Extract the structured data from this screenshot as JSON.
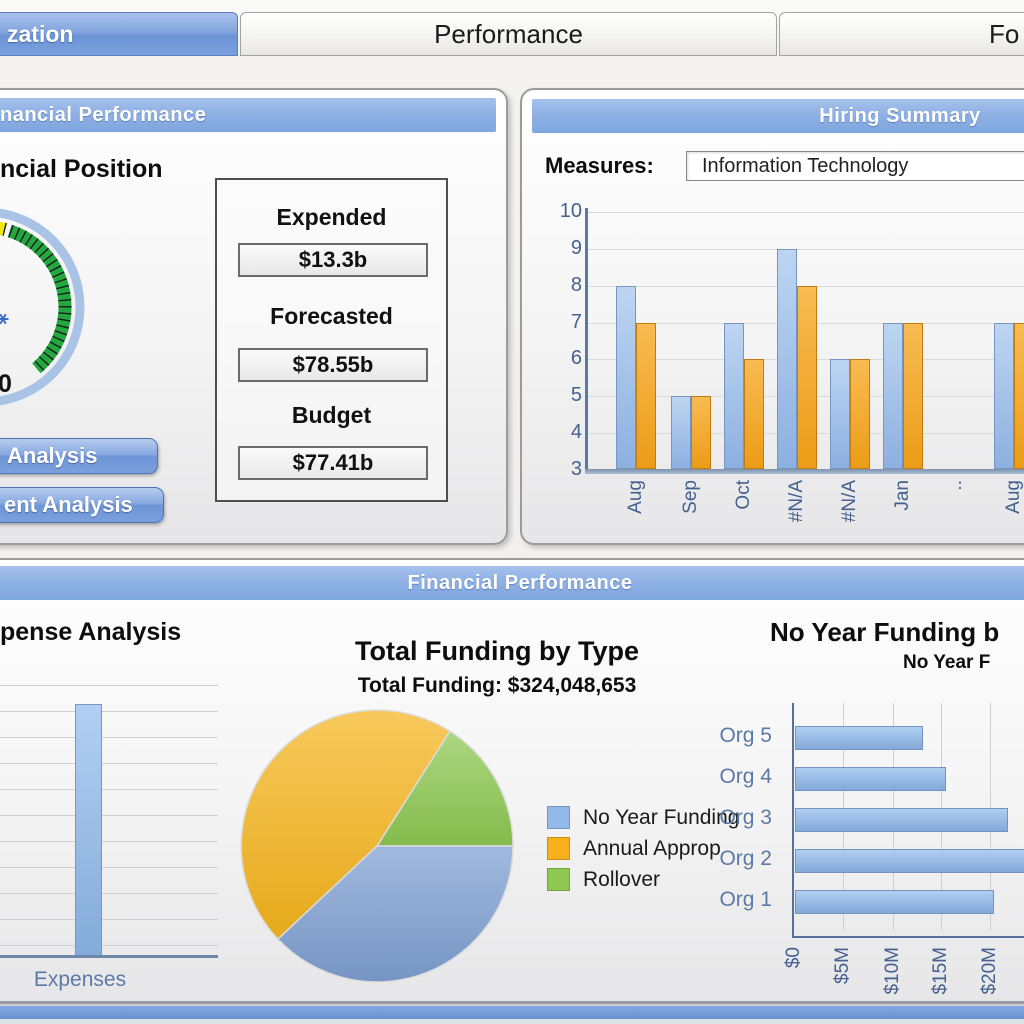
{
  "tabs": {
    "items": [
      {
        "label": "zation",
        "selected": true
      },
      {
        "label": "Performance",
        "selected": false
      },
      {
        "label": "Fo",
        "selected": false
      }
    ]
  },
  "left_panel": {
    "header": "nancial Performance",
    "section_title": "ncial Position",
    "gauge": {
      "label": "0",
      "ring_color": "#a9c3e6",
      "needle_color": "#3d6cc3",
      "segments": [
        {
          "from": 152,
          "to": 76,
          "color": "#f3e70c"
        },
        {
          "from": 72,
          "to": -50,
          "color": "#22a83e"
        }
      ]
    },
    "metrics": [
      {
        "label": "Expended",
        "value": "$13.3b"
      },
      {
        "label": "Forecasted",
        "value": "$78.55b"
      },
      {
        "label": "Budget",
        "value": "$77.41b"
      }
    ],
    "buttons": [
      {
        "label": "Analysis"
      },
      {
        "label": "ent Analysis"
      }
    ]
  },
  "right_panel": {
    "header": "Hiring Summary",
    "measures_label": "Measures:",
    "measures_value": "Information Technology"
  },
  "bottom_panel": {
    "header": "Financial Performance",
    "expense": {
      "title": "pense Analysis",
      "xlabel": "Expenses"
    },
    "pie": {
      "title": "Total Funding by Type",
      "subtitle": "Total Funding: $324,048,653"
    },
    "org": {
      "title": "No Year Funding b",
      "subtitle": "No Year F"
    }
  },
  "chart_data": [
    {
      "id": "hiring_summary",
      "type": "bar",
      "categories": [
        "Aug",
        "Sep",
        "Oct",
        "#N/A",
        "#N/A",
        "Jan",
        "..",
        "Aug"
      ],
      "series": [
        {
          "name": "blue-series",
          "color": "#92b4e3",
          "values": [
            8,
            5,
            7,
            9,
            6,
            7,
            null,
            7
          ]
        },
        {
          "name": "orange-series",
          "color": "#efa02a",
          "values": [
            7,
            5,
            6,
            8,
            6,
            7,
            null,
            7
          ]
        }
      ],
      "ylim": [
        3,
        10
      ],
      "yticks": [
        3,
        4,
        5,
        6,
        7,
        8,
        9,
        10
      ],
      "grid": true
    },
    {
      "id": "expense_analysis",
      "type": "bar",
      "title": "pense Analysis",
      "categories": [
        "Expenses"
      ],
      "values": [
        0.93
      ],
      "ylim": [
        0,
        1
      ],
      "grid": true
    },
    {
      "id": "total_funding_by_type",
      "type": "pie",
      "title": "Total Funding by Type",
      "subtitle": "Total Funding: $324,048,653",
      "start_angle": 0,
      "direction": "ccw",
      "draw_order": [
        2,
        1,
        0
      ],
      "slices": [
        {
          "label": "No Year Funding",
          "pct": 38,
          "color": "#7d9ed1",
          "legend_color": "#93b9e9"
        },
        {
          "label": "Annual Approp",
          "pct": 46,
          "color": "#f5b41c",
          "legend_color": "#f5b01b"
        },
        {
          "label": "Rollover",
          "pct": 16,
          "color": "#8cc751",
          "legend_color": "#8dc853"
        }
      ],
      "legend_position": "right"
    },
    {
      "id": "no_year_funding_by_org",
      "type": "bar-horizontal",
      "title": "No Year Funding b",
      "subtitle": "No Year F",
      "categories": [
        "Org 5",
        "Org 4",
        "Org 3",
        "Org 2",
        "Org 1"
      ],
      "values": [
        13.1,
        15.4,
        21.7,
        24.5,
        20.3
      ],
      "value_unit": "millions USD",
      "xticks": [
        "$0",
        "$5M",
        "$10M",
        "$15M",
        "$20M"
      ],
      "xlim": [
        0,
        25
      ],
      "grid": true
    }
  ]
}
